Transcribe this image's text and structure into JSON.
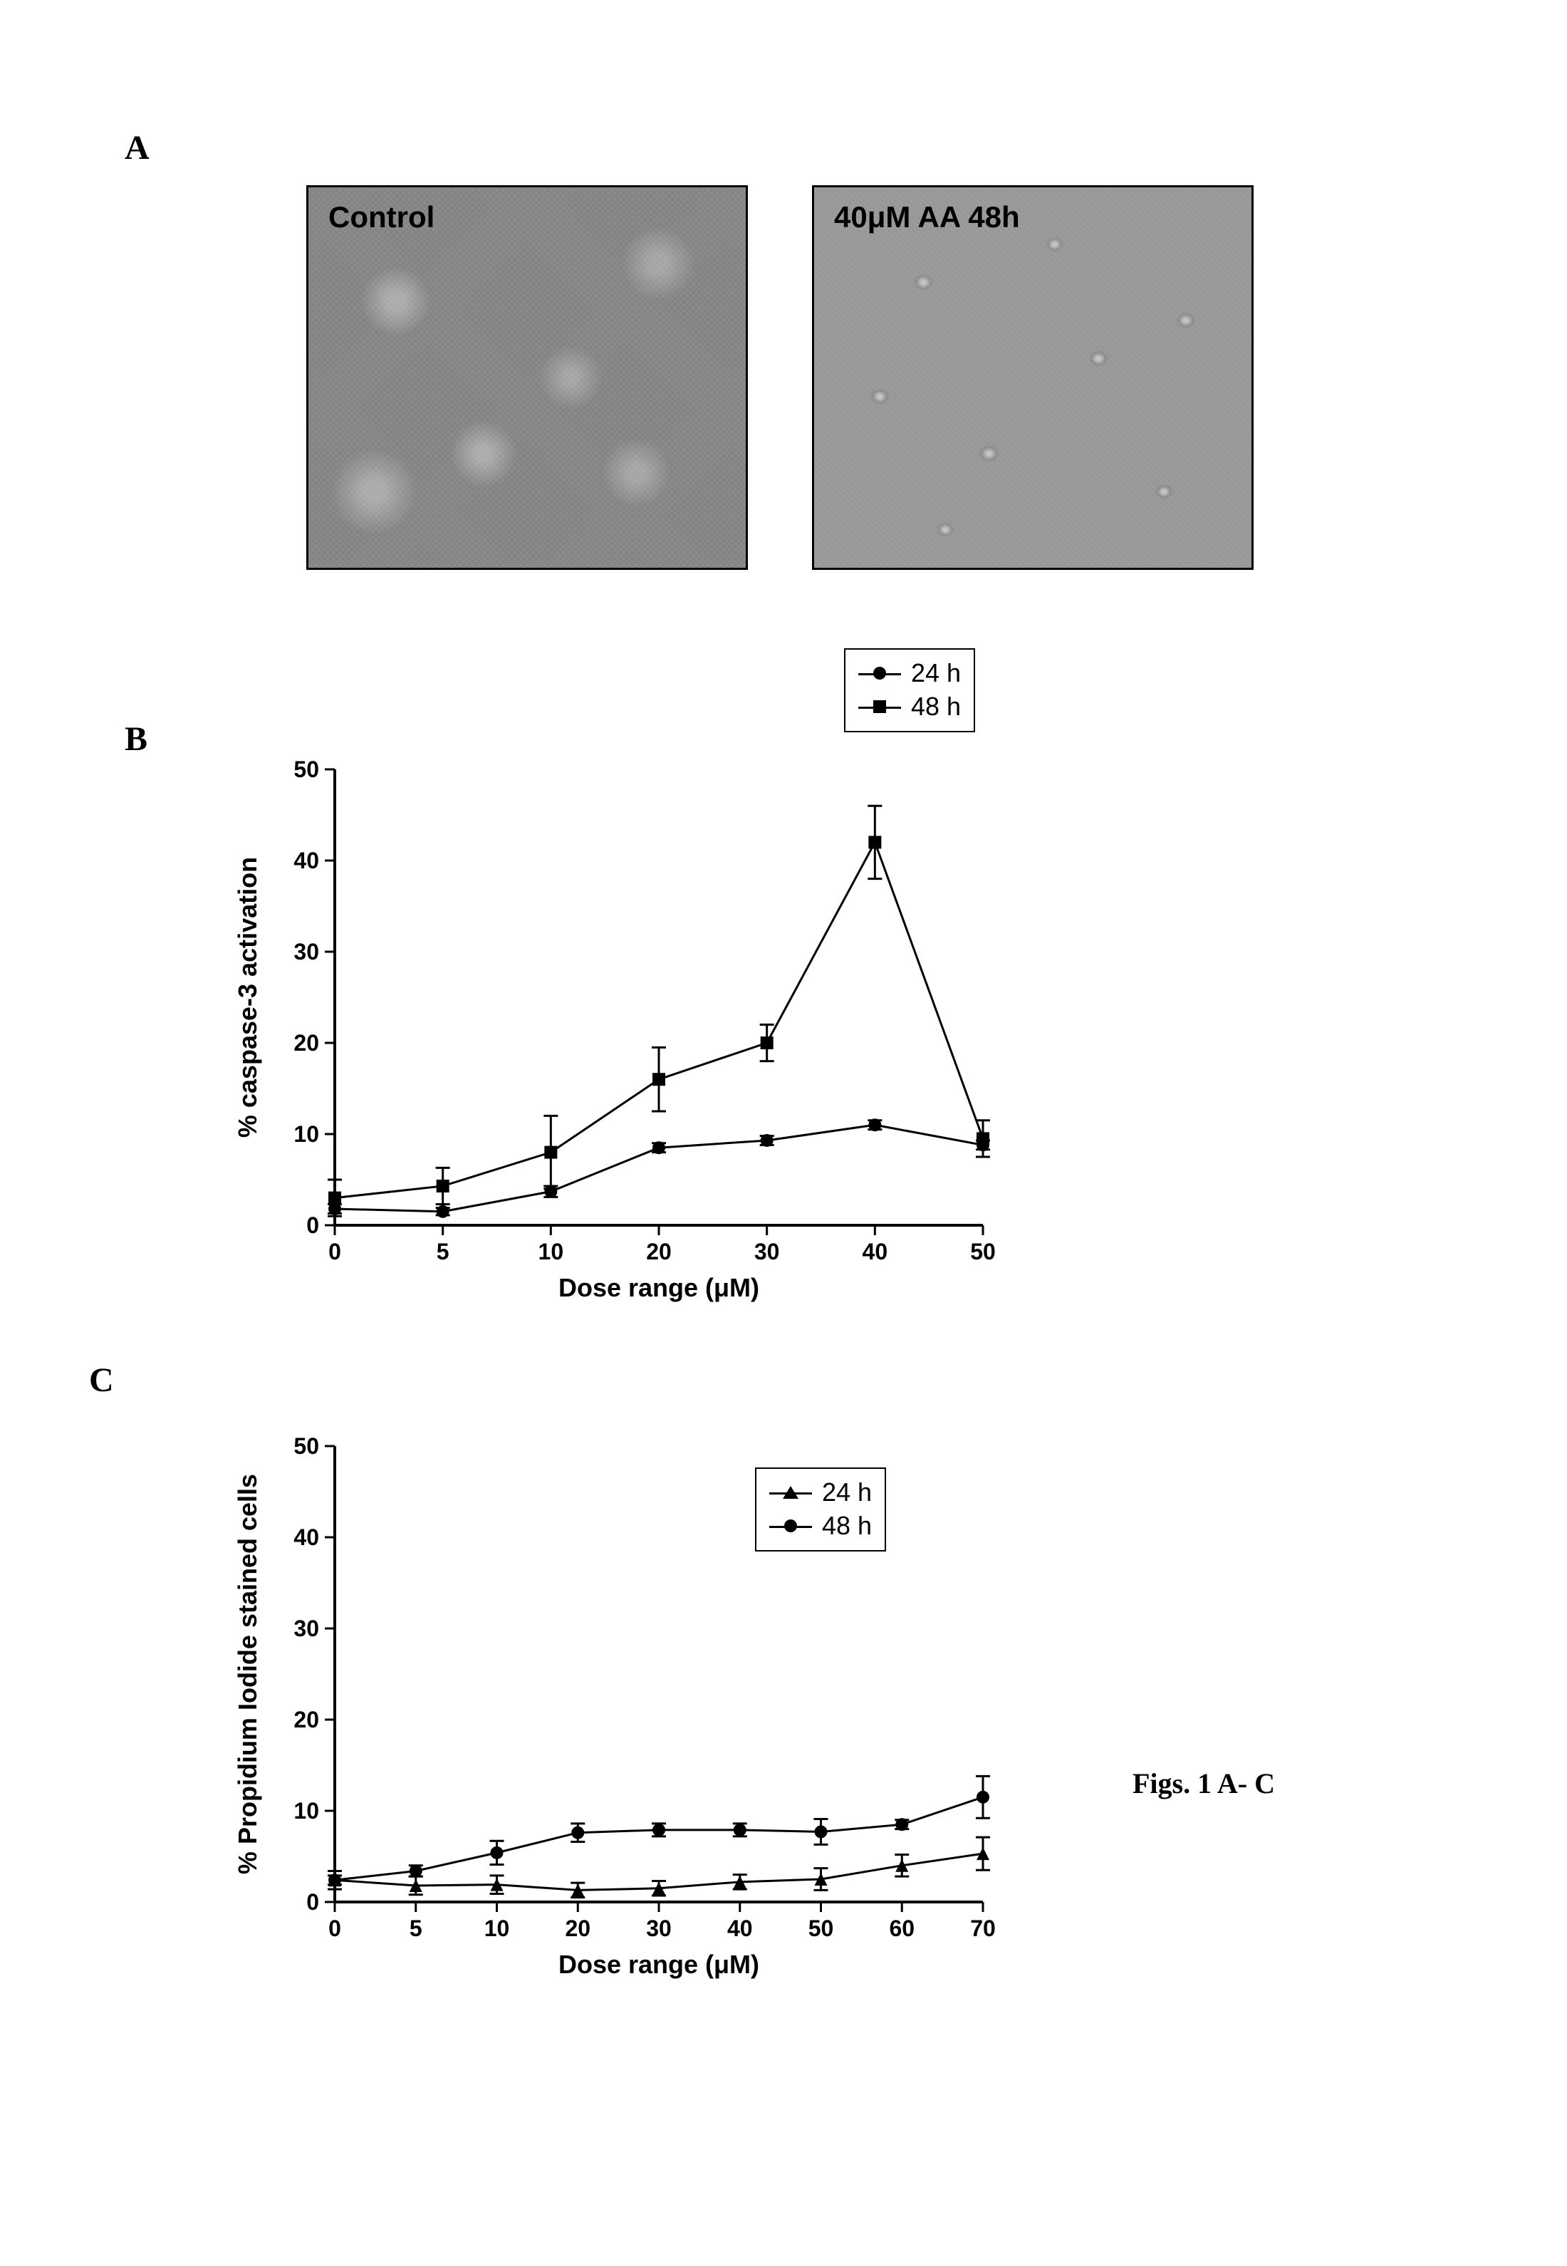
{
  "panelA": {
    "label": "A",
    "images": [
      {
        "caption": "Control"
      },
      {
        "caption": "40μM AA 48h"
      }
    ]
  },
  "panelB": {
    "label": "B",
    "chart": {
      "type": "line",
      "xlabel": "Dose range (μM)",
      "ylabel": "% caspase-3 activation",
      "label_fontsize": 36,
      "tick_fontsize": 32,
      "xlim": [
        0,
        50
      ],
      "ylim": [
        0,
        50
      ],
      "yticks": [
        0,
        10,
        20,
        30,
        40,
        50
      ],
      "xticks": [
        0,
        5,
        10,
        20,
        30,
        40,
        50
      ],
      "axis_color": "#000000",
      "line_width": 3,
      "marker_size": 9,
      "series": [
        {
          "name": "24 h",
          "marker": "circle",
          "color": "#000000",
          "x": [
            0,
            5,
            10,
            20,
            30,
            40,
            50
          ],
          "y": [
            1.8,
            1.5,
            3.7,
            8.5,
            9.3,
            11.0,
            8.8
          ],
          "err": [
            0.5,
            0.4,
            0.6,
            0.5,
            0.5,
            0.5,
            0.5
          ]
        },
        {
          "name": "48 h",
          "marker": "square",
          "color": "#000000",
          "x": [
            0,
            5,
            10,
            20,
            30,
            40,
            50
          ],
          "y": [
            3.0,
            4.3,
            8.0,
            16.0,
            20.0,
            42.0,
            9.5
          ],
          "err": [
            2.0,
            2.0,
            4.0,
            3.5,
            2.0,
            4.0,
            2.0
          ]
        }
      ],
      "legend_pos": "above-right"
    }
  },
  "panelC": {
    "label": "C",
    "chart": {
      "type": "line",
      "xlabel": "Dose range (μM)",
      "ylabel": "% Propidium Iodide stained cells",
      "label_fontsize": 36,
      "tick_fontsize": 32,
      "xlim": [
        0,
        70
      ],
      "ylim": [
        0,
        50
      ],
      "yticks": [
        0,
        10,
        20,
        30,
        40,
        50
      ],
      "xticks": [
        0,
        5,
        10,
        20,
        30,
        40,
        50,
        60,
        70
      ],
      "axis_color": "#000000",
      "line_width": 3,
      "marker_size": 9,
      "series": [
        {
          "name": "24 h",
          "marker": "triangle",
          "color": "#000000",
          "x": [
            0,
            5,
            10,
            20,
            30,
            40,
            50,
            60,
            70
          ],
          "y": [
            2.4,
            1.8,
            1.9,
            1.3,
            1.5,
            2.2,
            2.5,
            4.0,
            5.3
          ],
          "err": [
            1.0,
            1.0,
            1.0,
            0.8,
            0.8,
            0.8,
            1.2,
            1.2,
            1.8
          ]
        },
        {
          "name": "48 h",
          "marker": "circle",
          "color": "#000000",
          "x": [
            0,
            5,
            10,
            20,
            30,
            40,
            50,
            60,
            70
          ],
          "y": [
            2.4,
            3.4,
            5.4,
            7.6,
            7.9,
            7.9,
            7.7,
            8.5,
            11.5
          ],
          "err": [
            0.5,
            0.6,
            1.3,
            1.0,
            0.7,
            0.7,
            1.4,
            0.5,
            2.3
          ]
        }
      ],
      "legend_pos": "top-right-inside"
    }
  },
  "figure_caption": "Figs. 1 A- C",
  "colors": {
    "background": "#ffffff",
    "axis": "#000000",
    "text": "#000000",
    "micro_bg": "#8a8a8a"
  }
}
